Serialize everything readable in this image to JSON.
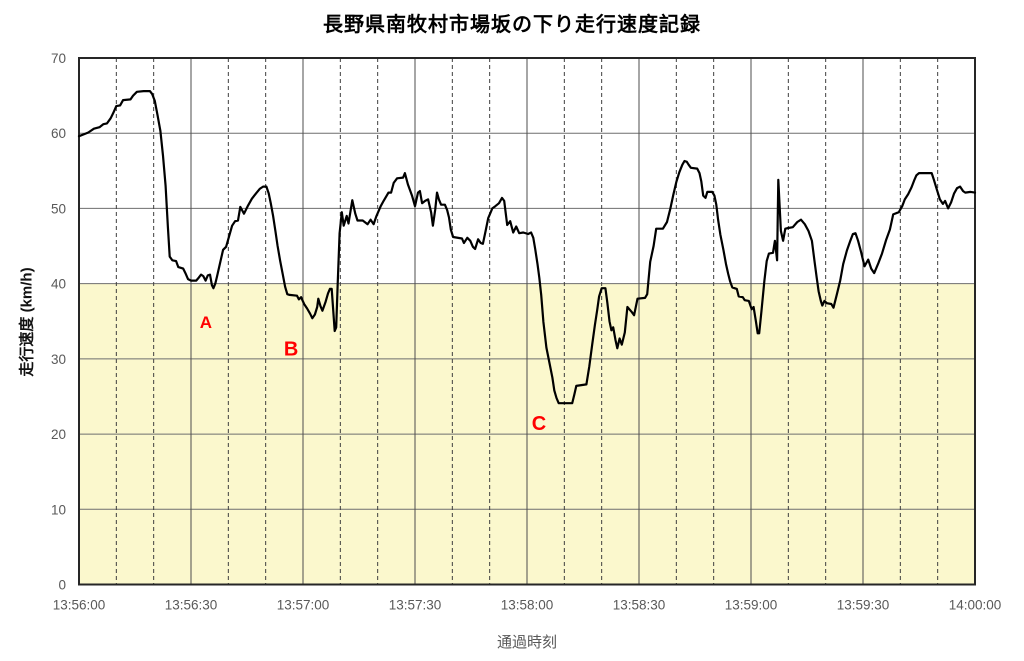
{
  "chart_data": {
    "type": "line",
    "title": "長野県南牧村市場坂の下り走行速度記録",
    "xlabel": "通過時刻",
    "ylabel": "走行速度 (km/h)",
    "x_axis": {
      "range_seconds": [
        0,
        240
      ],
      "major_tick_interval_seconds": 30,
      "minor_tick_interval_seconds": 10,
      "tick_labels": [
        "13:56:00",
        "13:56:30",
        "13:57:00",
        "13:57:30",
        "13:58:00",
        "13:58:30",
        "13:59:00",
        "13:59:30",
        "14:00:00"
      ]
    },
    "y_axis": {
      "min": 0,
      "max": 70,
      "tick_step": 10,
      "tick_labels": [
        "0",
        "10",
        "20",
        "30",
        "40",
        "50",
        "60",
        "70"
      ]
    },
    "grid": {
      "horizontal": true,
      "vertical_major_solid": true,
      "vertical_minor_dashed": true
    },
    "legend": "none",
    "shaded_region": {
      "y_min": 0,
      "y_max": 40,
      "fill": "#FBF8CD"
    },
    "colors": {
      "line": "#000000",
      "major_grid": "#6e6e6e",
      "minor_grid": "#3f3f3f",
      "border": "#262626",
      "tick_text": "#595959",
      "annotation": "#FF0000",
      "shade": "#FBF8CD"
    },
    "annotations": [
      {
        "label": "A",
        "t_seconds": 34.0,
        "speed": 34.9,
        "font_size": 17,
        "color": "#FF0000"
      },
      {
        "label": "B",
        "t_seconds": 56.8,
        "speed": 31.4,
        "font_size": 20,
        "color": "#FF0000"
      },
      {
        "label": "C",
        "t_seconds": 123.2,
        "speed": 21.5,
        "font_size": 20,
        "color": "#FF0000"
      }
    ],
    "series": [
      {
        "name": "走行速度",
        "color": "#000000",
        "points": [
          [
            0,
            59.6
          ],
          [
            1.5,
            59.9
          ],
          [
            2.5,
            60.1
          ],
          [
            4,
            60.6
          ],
          [
            5.5,
            60.8
          ],
          [
            6.5,
            61.2
          ],
          [
            7.5,
            61.3
          ],
          [
            8.5,
            62
          ],
          [
            9.2,
            62.7
          ],
          [
            10,
            63.6
          ],
          [
            11,
            63.7
          ],
          [
            11.8,
            64.4
          ],
          [
            13.8,
            64.5
          ],
          [
            14.5,
            65
          ],
          [
            15.5,
            65.5
          ],
          [
            17.3,
            65.6
          ],
          [
            19,
            65.6
          ],
          [
            19.6,
            65.2
          ],
          [
            20.3,
            64.3
          ],
          [
            21,
            62.5
          ],
          [
            21.8,
            60.3
          ],
          [
            22.5,
            57
          ],
          [
            23.2,
            53
          ],
          [
            23.8,
            47.5
          ],
          [
            24.3,
            43.6
          ],
          [
            25,
            43.1
          ],
          [
            26,
            43
          ],
          [
            26.6,
            42.2
          ],
          [
            27.9,
            42
          ],
          [
            28.5,
            41.4
          ],
          [
            29.2,
            40.6
          ],
          [
            30,
            40.4
          ],
          [
            31.4,
            40.4
          ],
          [
            32.1,
            40.8
          ],
          [
            32.7,
            41.2
          ],
          [
            33.3,
            41
          ],
          [
            33.9,
            40.4
          ],
          [
            34.5,
            41.1
          ],
          [
            35.1,
            41.2
          ],
          [
            35.6,
            39.8
          ],
          [
            36,
            39.4
          ],
          [
            36.5,
            40
          ],
          [
            37,
            41
          ],
          [
            37.9,
            43
          ],
          [
            38.6,
            44.5
          ],
          [
            39.4,
            44.9
          ],
          [
            40.2,
            46.3
          ],
          [
            41,
            47.7
          ],
          [
            41.8,
            48.3
          ],
          [
            42.6,
            48.4
          ],
          [
            43.2,
            50.2
          ],
          [
            44.2,
            49.3
          ],
          [
            45.3,
            50.4
          ],
          [
            46.3,
            51.3
          ],
          [
            47.4,
            52
          ],
          [
            48.4,
            52.6
          ],
          [
            49.3,
            52.9
          ],
          [
            50.2,
            52.9
          ],
          [
            50.8,
            52
          ],
          [
            51.4,
            50.6
          ],
          [
            52,
            49
          ],
          [
            52.6,
            47
          ],
          [
            53.2,
            45
          ],
          [
            53.9,
            43
          ],
          [
            54.6,
            41.2
          ],
          [
            55.2,
            39.6
          ],
          [
            55.8,
            38.6
          ],
          [
            56.4,
            38.5
          ],
          [
            58.4,
            38.4
          ],
          [
            58.9,
            37.9
          ],
          [
            59.5,
            38.2
          ],
          [
            60.3,
            37.3
          ],
          [
            61.1,
            36.7
          ],
          [
            61.9,
            36
          ],
          [
            62.5,
            35.4
          ],
          [
            63.2,
            35.9
          ],
          [
            63.8,
            36.9
          ],
          [
            64.1,
            38
          ],
          [
            64.7,
            37
          ],
          [
            65.2,
            36.4
          ],
          [
            66,
            37.5
          ],
          [
            66.7,
            38.7
          ],
          [
            67.2,
            39.3
          ],
          [
            67.7,
            39.3
          ],
          [
            68.1,
            36.5
          ],
          [
            68.5,
            33.7
          ],
          [
            68.9,
            34.2
          ],
          [
            69.3,
            40
          ],
          [
            69.8,
            46.7
          ],
          [
            70.4,
            49.5
          ],
          [
            70.9,
            47.7
          ],
          [
            71.7,
            49
          ],
          [
            72.2,
            48
          ],
          [
            73.2,
            51.1
          ],
          [
            74,
            49.3
          ],
          [
            74.6,
            48.4
          ],
          [
            76,
            48.4
          ],
          [
            77.3,
            47.9
          ],
          [
            78.1,
            48.5
          ],
          [
            78.9,
            47.9
          ],
          [
            79.7,
            49
          ],
          [
            80.8,
            50.3
          ],
          [
            81.6,
            51
          ],
          [
            82.9,
            52.1
          ],
          [
            83.6,
            52.1
          ],
          [
            84.3,
            53.4
          ],
          [
            85.2,
            54
          ],
          [
            86.8,
            54.1
          ],
          [
            87.3,
            54.7
          ],
          [
            88.1,
            53.2
          ],
          [
            89.2,
            51.7
          ],
          [
            90,
            50.3
          ],
          [
            90.8,
            52.1
          ],
          [
            91.3,
            52.3
          ],
          [
            91.9,
            50.7
          ],
          [
            92.7,
            51
          ],
          [
            93.5,
            51.2
          ],
          [
            94.3,
            49.5
          ],
          [
            94.8,
            47.7
          ],
          [
            95.4,
            49.8
          ],
          [
            95.9,
            52.1
          ],
          [
            96.4,
            51.2
          ],
          [
            97,
            50.5
          ],
          [
            98,
            50.5
          ],
          [
            98.6,
            49.8
          ],
          [
            99.1,
            48.8
          ],
          [
            99.6,
            47.2
          ],
          [
            100.2,
            46.2
          ],
          [
            102.6,
            46
          ],
          [
            103.1,
            45.4
          ],
          [
            104,
            46.1
          ],
          [
            104.8,
            45.7
          ],
          [
            105.5,
            44.9
          ],
          [
            106.1,
            44.6
          ],
          [
            106.9,
            45.9
          ],
          [
            107.6,
            45.4
          ],
          [
            108.2,
            45.3
          ],
          [
            108.9,
            47
          ],
          [
            109.6,
            48.7
          ],
          [
            110.7,
            50
          ],
          [
            111.5,
            50.3
          ],
          [
            112.5,
            50.7
          ],
          [
            113.3,
            51.4
          ],
          [
            113.9,
            51
          ],
          [
            114.7,
            47.8
          ],
          [
            115.5,
            48.3
          ],
          [
            116.3,
            46.8
          ],
          [
            117.1,
            47.6
          ],
          [
            117.9,
            46.7
          ],
          [
            119,
            46.8
          ],
          [
            120.3,
            46.6
          ],
          [
            121.1,
            46.8
          ],
          [
            121.7,
            46.1
          ],
          [
            122.2,
            44.6
          ],
          [
            122.8,
            42.6
          ],
          [
            123.3,
            40.8
          ],
          [
            123.8,
            38.5
          ],
          [
            124.4,
            34.9
          ],
          [
            125.2,
            31.5
          ],
          [
            126,
            29.5
          ],
          [
            126.8,
            27.5
          ],
          [
            127.3,
            25.8
          ],
          [
            127.9,
            24.8
          ],
          [
            128.5,
            24.1
          ],
          [
            132.1,
            24.1
          ],
          [
            132.7,
            25.3
          ],
          [
            133.2,
            26.4
          ],
          [
            135.9,
            26.6
          ],
          [
            136.7,
            29
          ],
          [
            137.5,
            32
          ],
          [
            138.2,
            34.5
          ],
          [
            138.8,
            36.5
          ],
          [
            139.3,
            38.3
          ],
          [
            140,
            39.4
          ],
          [
            141,
            39.4
          ],
          [
            141.5,
            37.5
          ],
          [
            142.1,
            35
          ],
          [
            142.6,
            33.8
          ],
          [
            143.1,
            34.2
          ],
          [
            143.7,
            32.5
          ],
          [
            144.2,
            31.4
          ],
          [
            144.8,
            32.7
          ],
          [
            145.4,
            31.9
          ],
          [
            146.2,
            33.5
          ],
          [
            146.9,
            36.9
          ],
          [
            148.1,
            36.2
          ],
          [
            148.7,
            35.8
          ],
          [
            149.6,
            38
          ],
          [
            151.6,
            38.1
          ],
          [
            152.2,
            38.6
          ],
          [
            153,
            42.9
          ],
          [
            153.9,
            45
          ],
          [
            154.6,
            47.3
          ],
          [
            156.4,
            47.3
          ],
          [
            157.5,
            48.2
          ],
          [
            158.4,
            50
          ],
          [
            159.2,
            51.8
          ],
          [
            160,
            53.5
          ],
          [
            160.8,
            54.8
          ],
          [
            161.6,
            55.8
          ],
          [
            162.2,
            56.3
          ],
          [
            162.8,
            56.2
          ],
          [
            163.3,
            55.8
          ],
          [
            163.9,
            55.4
          ],
          [
            165.6,
            55.3
          ],
          [
            166.2,
            54.7
          ],
          [
            166.7,
            53.6
          ],
          [
            167.2,
            51.7
          ],
          [
            167.8,
            51.4
          ],
          [
            168.3,
            52.2
          ],
          [
            169.6,
            52.2
          ],
          [
            170.2,
            51.7
          ],
          [
            170.7,
            50.5
          ],
          [
            171.2,
            48.5
          ],
          [
            171.8,
            46.5
          ],
          [
            172.6,
            44.5
          ],
          [
            173.3,
            42.6
          ],
          [
            173.9,
            41.3
          ],
          [
            174.4,
            40.3
          ],
          [
            175,
            39.5
          ],
          [
            176.2,
            39.3
          ],
          [
            176.7,
            38.3
          ],
          [
            177.8,
            38.2
          ],
          [
            178.3,
            37.8
          ],
          [
            179.4,
            37.7
          ],
          [
            180.2,
            36.6
          ],
          [
            180.7,
            36.9
          ],
          [
            181.3,
            35
          ],
          [
            181.8,
            33.4
          ],
          [
            182.2,
            33.4
          ],
          [
            182.8,
            36.4
          ],
          [
            183.6,
            40.4
          ],
          [
            184.2,
            43
          ],
          [
            184.8,
            44
          ],
          [
            185.9,
            44.1
          ],
          [
            186.4,
            45.7
          ],
          [
            187,
            43.1
          ],
          [
            187.3,
            53.8
          ],
          [
            188,
            47
          ],
          [
            188.6,
            45.7
          ],
          [
            189.2,
            47.3
          ],
          [
            190,
            47.4
          ],
          [
            191.2,
            47.5
          ],
          [
            192.4,
            48.2
          ],
          [
            193.4,
            48.5
          ],
          [
            194.4,
            47.9
          ],
          [
            195.4,
            47
          ],
          [
            196.3,
            45.7
          ],
          [
            197,
            43
          ],
          [
            197.6,
            40.8
          ],
          [
            198.1,
            39
          ],
          [
            198.7,
            37.7
          ],
          [
            199.1,
            37.1
          ],
          [
            199.7,
            37.7
          ],
          [
            200.3,
            37.4
          ],
          [
            201.5,
            37.3
          ],
          [
            202.1,
            36.8
          ],
          [
            203,
            38.6
          ],
          [
            203.9,
            40.4
          ],
          [
            204.7,
            42.6
          ],
          [
            205.7,
            44.4
          ],
          [
            206.6,
            45.7
          ],
          [
            207.3,
            46.6
          ],
          [
            208,
            46.7
          ],
          [
            208.7,
            45.7
          ],
          [
            209.5,
            44.2
          ],
          [
            210.4,
            42.3
          ],
          [
            211.4,
            43.2
          ],
          [
            212.2,
            42
          ],
          [
            213,
            41.4
          ],
          [
            214.1,
            42.7
          ],
          [
            215.1,
            44
          ],
          [
            216.2,
            45.8
          ],
          [
            217.2,
            47.2
          ],
          [
            218.1,
            49.2
          ],
          [
            219.6,
            49.5
          ],
          [
            220.5,
            50.3
          ],
          [
            221.2,
            51.2
          ],
          [
            222.1,
            51.9
          ],
          [
            223,
            52.8
          ],
          [
            223.7,
            53.7
          ],
          [
            224.3,
            54.4
          ],
          [
            225,
            54.7
          ],
          [
            228.4,
            54.7
          ],
          [
            229,
            53.8
          ],
          [
            229.6,
            52.8
          ],
          [
            230.6,
            51.2
          ],
          [
            231.4,
            50.6
          ],
          [
            232,
            51
          ],
          [
            232.8,
            50
          ],
          [
            233.6,
            50.8
          ],
          [
            234.4,
            52
          ],
          [
            235.2,
            52.7
          ],
          [
            236,
            52.9
          ],
          [
            236.8,
            52.3
          ],
          [
            237.4,
            52.1
          ],
          [
            238.8,
            52.2
          ],
          [
            240,
            52.1
          ]
        ]
      }
    ]
  }
}
